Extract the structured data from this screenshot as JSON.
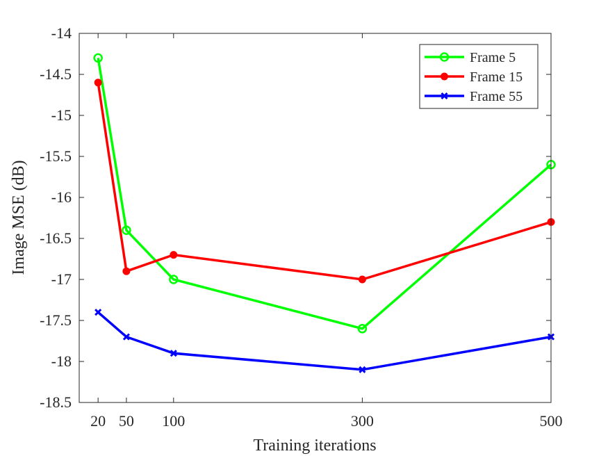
{
  "chart_data": {
    "type": "line",
    "xlabel": "Training iterations",
    "ylabel": "Image MSE (dB)",
    "x": [
      20,
      50,
      100,
      300,
      500
    ],
    "xlim": [
      0,
      500
    ],
    "ylim": [
      -18.5,
      -14
    ],
    "xticks": [
      "20",
      "50",
      "100",
      "300",
      "500"
    ],
    "yticks": [
      "-14",
      "-14.5",
      "-15",
      "-15.5",
      "-16",
      "-16.5",
      "-17",
      "-17.5",
      "-18",
      "-18.5"
    ],
    "grid": false,
    "legend_position": "top-right",
    "series": [
      {
        "name": "Frame 5",
        "color": "#00ff00",
        "marker": "open-circle",
        "values": [
          -14.3,
          -16.4,
          -17.0,
          -17.6,
          -15.6
        ]
      },
      {
        "name": "Frame 15",
        "color": "#ff0000",
        "marker": "filled-circle",
        "values": [
          -14.6,
          -16.9,
          -16.7,
          -17.0,
          -16.3
        ]
      },
      {
        "name": "Frame 55",
        "color": "#0000ff",
        "marker": "x",
        "values": [
          -17.4,
          -17.7,
          -17.9,
          -18.1,
          -17.7
        ]
      }
    ]
  }
}
